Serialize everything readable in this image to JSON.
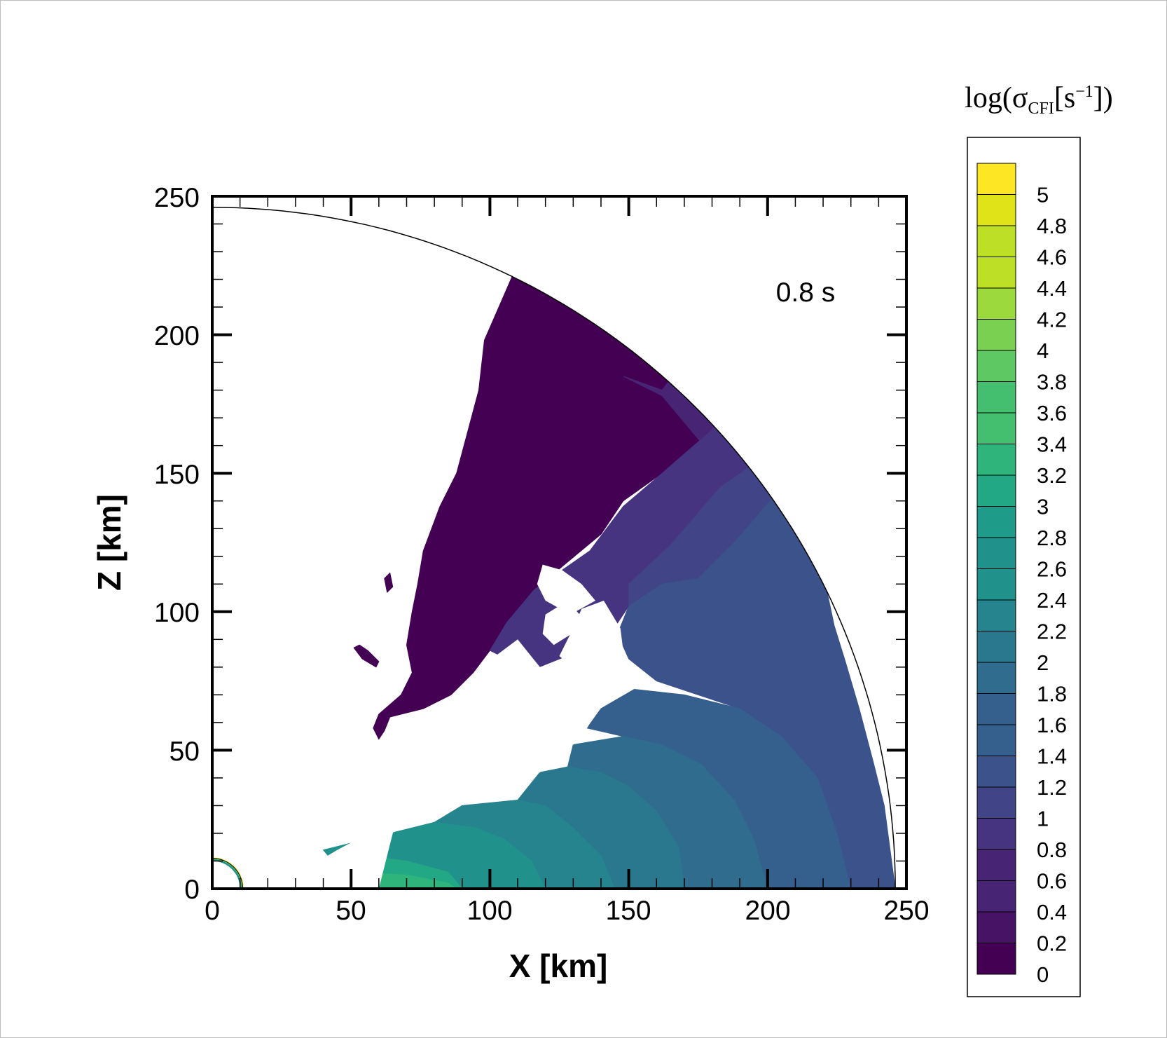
{
  "chart_data": {
    "type": "heatmap",
    "annotation": "0.8 s",
    "xlabel": "X [km]",
    "ylabel": "Z [km]",
    "xlim": [
      0,
      250
    ],
    "ylim": [
      0,
      250
    ],
    "x_ticks": [
      "0",
      "50",
      "100",
      "150",
      "200",
      "250"
    ],
    "y_ticks": [
      "0",
      "50",
      "100",
      "150",
      "200",
      "250"
    ],
    "outer_radius_km": 246,
    "colorbar": {
      "title": "log(σCFI[s−1])",
      "title_parts": {
        "base": "log(σ",
        "sub": "CFI",
        "mid": "[s",
        "sup": "−1",
        "end": "])"
      },
      "range": [
        0,
        5.2
      ],
      "step": 0.2,
      "labels": [
        "5",
        "4.8",
        "4.6",
        "4.4",
        "4.2",
        "4",
        "3.8",
        "3.6",
        "3.4",
        "3.2",
        "3",
        "2.8",
        "2.6",
        "2.4",
        "2.2",
        "2",
        "1.8",
        "1.6",
        "1.4",
        "1.2",
        "1",
        "0.8",
        "0.6",
        "0.4",
        "0.2",
        "0"
      ],
      "colors": [
        "#440154",
        "#471365",
        "#482475",
        "#463480",
        "#414487",
        "#3b528b",
        "#355f8d",
        "#2f6c8e",
        "#2a788e",
        "#25848e",
        "#21918c",
        "#1e9c89",
        "#22a884",
        "#2fb47c",
        "#44bf70",
        "#5ec962",
        "#7ad151",
        "#9bd93c",
        "#bddf26",
        "#dfe318",
        "#fde725"
      ]
    },
    "regions": [
      {
        "name": "upper-dark",
        "level": 0.0,
        "polygon": [
          [
            108,
            221
          ],
          [
            130,
            214
          ],
          [
            150,
            202
          ],
          [
            168,
            188
          ],
          [
            185,
            170
          ],
          [
            162,
            150
          ],
          [
            148,
            140
          ],
          [
            140,
            128
          ],
          [
            128,
            118
          ],
          [
            116,
            108
          ],
          [
            106,
            96
          ],
          [
            100,
            86
          ],
          [
            94,
            78
          ],
          [
            86,
            70
          ],
          [
            76,
            65
          ],
          [
            64,
            62
          ],
          [
            62,
            57
          ],
          [
            60,
            54
          ],
          [
            58,
            58
          ],
          [
            60,
            63
          ],
          [
            68,
            70
          ],
          [
            72,
            78
          ],
          [
            70,
            88
          ],
          [
            72,
            100
          ],
          [
            74,
            110
          ],
          [
            76,
            122
          ],
          [
            82,
            138
          ],
          [
            88,
            150
          ],
          [
            92,
            165
          ],
          [
            96,
            180
          ],
          [
            98,
            198
          ]
        ]
      },
      {
        "name": "upper-dark-speck",
        "level": 0.0,
        "polygon": [
          [
            62,
            112
          ],
          [
            64,
            114
          ],
          [
            65,
            109
          ],
          [
            63,
            107
          ]
        ]
      },
      {
        "name": "upper-dark-blob",
        "level": 0.0,
        "polygon": [
          [
            51,
            87
          ],
          [
            54,
            83
          ],
          [
            59,
            80
          ],
          [
            60,
            82
          ],
          [
            56,
            86
          ],
          [
            53,
            88
          ]
        ]
      },
      {
        "name": "upper-band-1",
        "level": 0.4,
        "polygon": [
          [
            148,
            185
          ],
          [
            162,
            178
          ],
          [
            177,
            160
          ],
          [
            190,
            150
          ],
          [
            194,
            152
          ],
          [
            200,
            148
          ],
          [
            186,
            170
          ],
          [
            168,
            188
          ],
          [
            162,
            180
          ]
        ]
      },
      {
        "name": "upper-band-2",
        "level": 0.6,
        "polygon": [
          [
            100,
            86
          ],
          [
            106,
            96
          ],
          [
            116,
            108
          ],
          [
            126,
            115
          ],
          [
            136,
            122
          ],
          [
            148,
            138
          ],
          [
            162,
            150
          ],
          [
            185,
            170
          ],
          [
            200,
            148
          ],
          [
            170,
            124
          ],
          [
            158,
            112
          ],
          [
            150,
            102
          ],
          [
            142,
            90
          ],
          [
            128,
            84
          ],
          [
            118,
            80
          ],
          [
            108,
            82
          ]
        ]
      },
      {
        "name": "upper-band-3",
        "level": 0.8,
        "polygon": [
          [
            150,
            110
          ],
          [
            165,
            124
          ],
          [
            183,
            145
          ],
          [
            199,
            156
          ],
          [
            207,
            140
          ],
          [
            215,
            120
          ],
          [
            200,
            100
          ],
          [
            185,
            92
          ],
          [
            170,
            88
          ],
          [
            156,
            92
          ],
          [
            150,
            100
          ]
        ]
      },
      {
        "name": "mid-band",
        "level": 1.0,
        "polygon": [
          [
            150,
            102
          ],
          [
            162,
            110
          ],
          [
            175,
            112
          ],
          [
            188,
            125
          ],
          [
            206,
            146
          ],
          [
            214,
            131
          ],
          [
            220,
            114
          ],
          [
            224,
            95
          ],
          [
            228,
            82
          ],
          [
            233,
            65
          ],
          [
            238,
            46
          ],
          [
            242,
            30
          ],
          [
            244,
            15
          ],
          [
            246,
            0
          ],
          [
            230,
            0
          ],
          [
            225,
            20
          ],
          [
            218,
            40
          ],
          [
            205,
            55
          ],
          [
            190,
            65
          ],
          [
            175,
            70
          ],
          [
            160,
            75
          ],
          [
            150,
            83
          ],
          [
            146,
            92
          ]
        ]
      },
      {
        "name": "lower-band-1",
        "level": 1.2,
        "polygon": [
          [
            140,
            65
          ],
          [
            152,
            72
          ],
          [
            170,
            70
          ],
          [
            190,
            65
          ],
          [
            205,
            55
          ],
          [
            218,
            40
          ],
          [
            225,
            20
          ],
          [
            230,
            0
          ],
          [
            200,
            0
          ],
          [
            195,
            18
          ],
          [
            188,
            32
          ],
          [
            176,
            45
          ],
          [
            162,
            52
          ],
          [
            148,
            55
          ],
          [
            135,
            58
          ]
        ]
      },
      {
        "name": "lower-band-2",
        "level": 1.4,
        "polygon": [
          [
            130,
            52
          ],
          [
            148,
            55
          ],
          [
            162,
            52
          ],
          [
            176,
            45
          ],
          [
            188,
            32
          ],
          [
            195,
            18
          ],
          [
            200,
            0
          ],
          [
            170,
            0
          ],
          [
            168,
            15
          ],
          [
            160,
            28
          ],
          [
            150,
            37
          ],
          [
            140,
            42
          ],
          [
            128,
            44
          ]
        ]
      },
      {
        "name": "lower-band-3",
        "level": 1.6,
        "polygon": [
          [
            118,
            42
          ],
          [
            128,
            44
          ],
          [
            140,
            42
          ],
          [
            150,
            37
          ],
          [
            160,
            28
          ],
          [
            168,
            15
          ],
          [
            170,
            0
          ],
          [
            145,
            0
          ],
          [
            140,
            12
          ],
          [
            130,
            22
          ],
          [
            120,
            30
          ],
          [
            110,
            32
          ]
        ]
      },
      {
        "name": "lower-band-4",
        "level": 1.8,
        "polygon": [
          [
            90,
            30
          ],
          [
            110,
            32
          ],
          [
            120,
            30
          ],
          [
            130,
            22
          ],
          [
            140,
            12
          ],
          [
            145,
            0
          ],
          [
            120,
            0
          ],
          [
            115,
            10
          ],
          [
            105,
            18
          ],
          [
            95,
            22
          ],
          [
            80,
            24
          ]
        ]
      },
      {
        "name": "lower-band-5",
        "level": 2.0,
        "polygon": [
          [
            40,
            14
          ],
          [
            80,
            24
          ],
          [
            95,
            22
          ],
          [
            105,
            18
          ],
          [
            115,
            10
          ],
          [
            120,
            0
          ],
          [
            90,
            0
          ],
          [
            85,
            6
          ],
          [
            70,
            10
          ],
          [
            55,
            12
          ],
          [
            45,
            8
          ]
        ]
      },
      {
        "name": "lower-band-6",
        "level": 2.4,
        "polygon": [
          [
            23,
            0
          ],
          [
            45,
            8
          ],
          [
            55,
            12
          ],
          [
            70,
            10
          ],
          [
            85,
            6
          ],
          [
            90,
            0
          ]
        ]
      },
      {
        "name": "lower-band-7",
        "level": 2.6,
        "polygon": [
          [
            30,
            0
          ],
          [
            50,
            6
          ],
          [
            70,
            5
          ],
          [
            85,
            2
          ],
          [
            88,
            0
          ]
        ]
      }
    ],
    "voids": [
      {
        "name": "hole-1",
        "polygon": [
          [
            119,
            117
          ],
          [
            126,
            115
          ],
          [
            133,
            110
          ],
          [
            138,
            104
          ],
          [
            129,
            99
          ],
          [
            120,
            104
          ],
          [
            117,
            110
          ]
        ]
      },
      {
        "name": "hole-2",
        "polygon": [
          [
            123,
            88
          ],
          [
            131,
            93
          ],
          [
            134,
            97
          ],
          [
            128,
            104
          ],
          [
            120,
            99
          ],
          [
            119,
            92
          ]
        ]
      },
      {
        "name": "hole-3",
        "polygon": [
          [
            133,
            101
          ],
          [
            141,
            104
          ],
          [
            147,
            94
          ],
          [
            148,
            86
          ],
          [
            140,
            76
          ],
          [
            132,
            78
          ],
          [
            125,
            84
          ],
          [
            130,
            94
          ]
        ]
      },
      {
        "name": "lower-void",
        "polygon": [
          [
            102,
            84
          ],
          [
            110,
            90
          ],
          [
            118,
            80
          ],
          [
            128,
            84
          ],
          [
            140,
            76
          ],
          [
            150,
            83
          ],
          [
            142,
            70
          ],
          [
            135,
            58
          ],
          [
            130,
            52
          ],
          [
            118,
            42
          ],
          [
            108,
            35
          ],
          [
            95,
            32
          ],
          [
            85,
            30
          ],
          [
            75,
            26
          ],
          [
            60,
            22
          ],
          [
            45,
            14
          ],
          [
            35,
            8
          ],
          [
            28,
            4
          ],
          [
            23,
            0
          ],
          [
            60,
            0
          ],
          [
            65,
            20
          ],
          [
            75,
            38
          ],
          [
            85,
            55
          ],
          [
            95,
            70
          ]
        ]
      }
    ],
    "inner_shell": {
      "radius_km": 11,
      "colors": [
        "#fde725",
        "#5ec962",
        "#21918c"
      ]
    }
  }
}
